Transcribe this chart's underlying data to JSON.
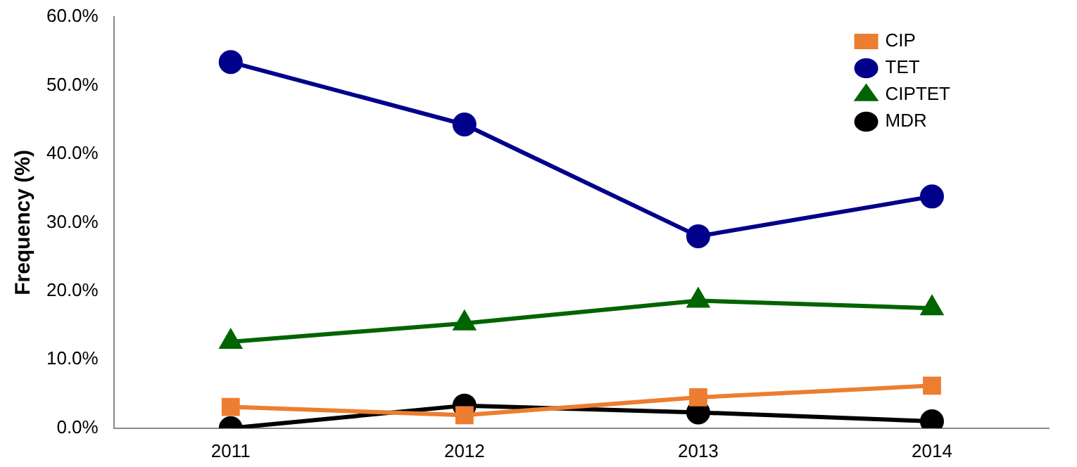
{
  "chart_data": {
    "type": "line",
    "ylabel": "Frequency (%)",
    "categories": [
      "2011",
      "2012",
      "2013",
      "2014"
    ],
    "series": [
      {
        "name": "CIP",
        "color": "#ed7d31",
        "marker": "square",
        "values": [
          3.1,
          1.9,
          4.5,
          6.2
        ]
      },
      {
        "name": "TET",
        "color": "#00008b",
        "marker": "circle",
        "values": [
          53.4,
          44.3,
          28.0,
          33.8
        ]
      },
      {
        "name": "CIPTET",
        "color": "#006400",
        "marker": "triangle",
        "values": [
          12.6,
          15.3,
          18.6,
          17.5
        ]
      },
      {
        "name": "MDR",
        "color": "#000000",
        "marker": "circle",
        "values": [
          0,
          3.3,
          2.3,
          1.0
        ]
      }
    ],
    "ylim": [
      0,
      60
    ],
    "yticks": [
      {
        "value": 0,
        "label": "0.0%"
      },
      {
        "value": 10,
        "label": "10.0%"
      },
      {
        "value": 20,
        "label": "20.0%"
      },
      {
        "value": 30,
        "label": "30.0%"
      },
      {
        "value": 40,
        "label": "40.0%"
      },
      {
        "value": 50,
        "label": "50.0%"
      },
      {
        "value": 60,
        "label": "60.0%"
      }
    ],
    "grid": false,
    "legend": "top right"
  }
}
